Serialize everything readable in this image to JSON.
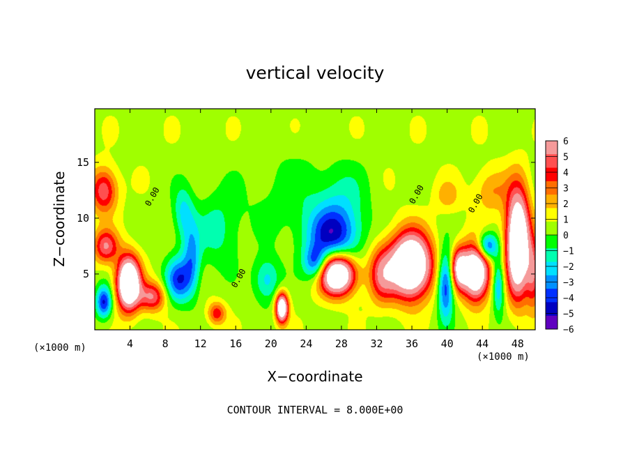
{
  "chart_data": {
    "type": "heatmap",
    "title": "vertical velocity",
    "xlabel": "X−coordinate",
    "ylabel": "Z−coordinate",
    "x_unit": "(×1000 m)",
    "z_unit": "(×1000 m)",
    "xlim": [
      0,
      50
    ],
    "ylim": [
      0,
      19.8
    ],
    "x_ticks": [
      4,
      8,
      12,
      16,
      20,
      24,
      28,
      32,
      36,
      40,
      44,
      48
    ],
    "y_ticks": [
      5,
      10,
      15
    ],
    "x_tick_labels": [
      "4",
      "8",
      "12",
      "16",
      "20",
      "24",
      "28",
      "32",
      "36",
      "40",
      "44",
      "48"
    ],
    "y_tick_labels": [
      "5",
      "10",
      "15"
    ],
    "colorbar": {
      "min": -6,
      "max": 6,
      "ticks": [
        6,
        5,
        4,
        3,
        2,
        1,
        0,
        -1,
        -2,
        -3,
        -4,
        -5,
        -6
      ],
      "tick_labels": [
        "6",
        "5",
        "4",
        "3",
        "2",
        "1",
        "0",
        "−1",
        "−2",
        "−3",
        "−4",
        "−5",
        "−6"
      ],
      "colors": [
        "#f59a9a",
        "#ff5050",
        "#ff0000",
        "#ff6e00",
        "#ffb000",
        "#ffff00",
        "#a0ff00",
        "#00ff00",
        "#00ffb0",
        "#00e0ff",
        "#0090ff",
        "#0030ff",
        "#0000c0",
        "#6000c0"
      ]
    },
    "contour_labels": [
      {
        "text": "0.00",
        "x": 6.8,
        "z": 11.8
      },
      {
        "text": "0.00",
        "x": 16.6,
        "z": 4.5
      },
      {
        "text": "0.00",
        "x": 36.8,
        "z": 12.0
      },
      {
        "text": "0.00",
        "x": 43.5,
        "z": 11.2
      }
    ],
    "features": [
      {
        "kind": "updraft",
        "x": 3.8,
        "z": 4.2,
        "sx": 1.3,
        "sz": 2.3,
        "w": 11
      },
      {
        "kind": "updraft",
        "x": 6.5,
        "z": 3.0,
        "sx": 1.5,
        "sz": 1.3,
        "w": 4.5
      },
      {
        "kind": "updraft",
        "x": 1.2,
        "z": 7.5,
        "sx": 1.4,
        "sz": 1.5,
        "w": 4.5
      },
      {
        "kind": "updraft",
        "x": 1.0,
        "z": 12.5,
        "sx": 1.5,
        "sz": 2.0,
        "w": 4.5
      },
      {
        "kind": "updraft",
        "x": 13.8,
        "z": 1.5,
        "sx": 1.0,
        "sz": 1.0,
        "w": 3.5
      },
      {
        "kind": "updraft",
        "x": 21.2,
        "z": 2.0,
        "sx": 0.7,
        "sz": 1.3,
        "w": 9
      },
      {
        "kind": "updraft",
        "x": 27.5,
        "z": 5.0,
        "sx": 2.0,
        "sz": 1.8,
        "w": 10
      },
      {
        "kind": "updraft",
        "x": 35.8,
        "z": 5.8,
        "sx": 2.3,
        "sz": 2.8,
        "w": 11
      },
      {
        "kind": "updraft",
        "x": 32.5,
        "z": 5.0,
        "sx": 1.5,
        "sz": 2.5,
        "w": 4
      },
      {
        "kind": "updraft",
        "x": 48.0,
        "z": 7.8,
        "sx": 1.3,
        "sz": 4.5,
        "w": 11
      },
      {
        "kind": "updraft",
        "x": 49.8,
        "z": 5.0,
        "sx": 0.8,
        "sz": 3.0,
        "w": 4
      },
      {
        "kind": "updraft",
        "x": 43.2,
        "z": 5.2,
        "sx": 1.5,
        "sz": 2.4,
        "w": 10
      },
      {
        "kind": "updraft",
        "x": 41.3,
        "z": 5.5,
        "sx": 0.9,
        "sz": 1.8,
        "w": 6
      },
      {
        "kind": "updraft",
        "x": 45.0,
        "z": 12.5,
        "sx": 2.0,
        "sz": 2.0,
        "w": 2
      },
      {
        "kind": "updraft",
        "x": 40.0,
        "z": 12.0,
        "sx": 1.5,
        "sz": 1.5,
        "w": 1.5
      },
      {
        "kind": "downdraft",
        "x": 1.0,
        "z": 2.5,
        "sx": 0.9,
        "sz": 1.4,
        "w": -5
      },
      {
        "kind": "downdraft",
        "x": 9.5,
        "z": 4.5,
        "sx": 1.5,
        "sz": 2.0,
        "w": -4.5
      },
      {
        "kind": "downdraft",
        "x": 11.0,
        "z": 6.5,
        "sx": 1.0,
        "sz": 3.0,
        "w": -3
      },
      {
        "kind": "downdraft",
        "x": 10.0,
        "z": 10.5,
        "sx": 1.2,
        "sz": 2.5,
        "w": -2.5
      },
      {
        "kind": "downdraft",
        "x": 14.0,
        "z": 9.0,
        "sx": 2.5,
        "sz": 3.5,
        "w": -1.8
      },
      {
        "kind": "downdraft",
        "x": 19.5,
        "z": 4.5,
        "sx": 1.5,
        "sz": 2.0,
        "w": -2.8
      },
      {
        "kind": "downdraft",
        "x": 27.0,
        "z": 8.5,
        "sx": 3.0,
        "sz": 2.5,
        "w": -5
      },
      {
        "kind": "downdraft",
        "x": 25.0,
        "z": 6.0,
        "sx": 1.3,
        "sz": 1.5,
        "w": -4
      },
      {
        "kind": "downdraft",
        "x": 28.0,
        "z": 12.0,
        "sx": 3.0,
        "sz": 3.0,
        "w": -1.5
      },
      {
        "kind": "downdraft",
        "x": 39.8,
        "z": 4.0,
        "sx": 0.9,
        "sz": 3.0,
        "w": -5
      },
      {
        "kind": "downdraft",
        "x": 44.5,
        "z": 7.5,
        "sx": 1.2,
        "sz": 1.2,
        "w": -5
      },
      {
        "kind": "downdraft",
        "x": 45.8,
        "z": 4.0,
        "sx": 0.7,
        "sz": 2.5,
        "w": -3.5
      },
      {
        "kind": "downdraft",
        "x": 22.0,
        "z": 12.0,
        "sx": 5.0,
        "sz": 4.0,
        "w": -1.0
      }
    ]
  }
}
